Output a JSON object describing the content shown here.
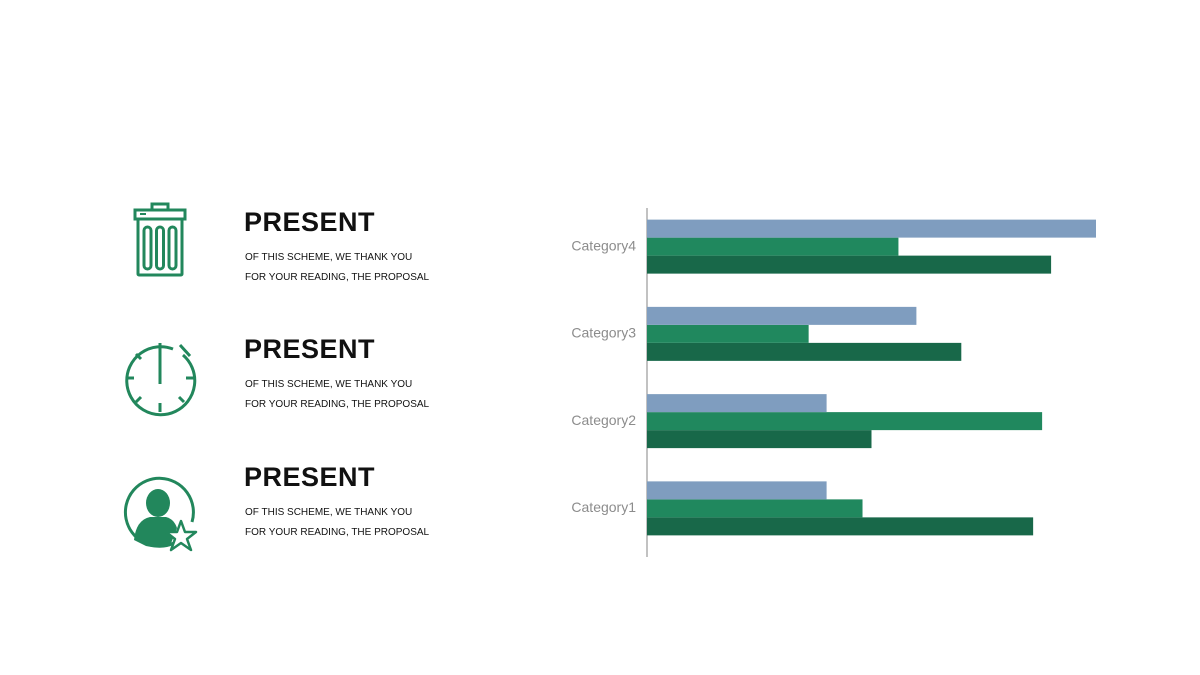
{
  "items": [
    {
      "title": "PRESENT",
      "line1": "OF THIS SCHEME, WE THANK YOU",
      "line2": "FOR YOUR READING, THE PROPOSAL"
    },
    {
      "title": "PRESENT",
      "line1": "OF THIS SCHEME, WE THANK YOU",
      "line2": "FOR YOUR READING, THE PROPOSAL"
    },
    {
      "title": "PRESENT",
      "line1": "OF THIS SCHEME, WE THANK YOU",
      "line2": "FOR YOUR READING, THE PROPOSAL"
    }
  ],
  "chart_data": {
    "type": "bar",
    "orientation": "horizontal",
    "categories": [
      "Category1",
      "Category2",
      "Category3",
      "Category4"
    ],
    "series": [
      {
        "color": "#186849",
        "values": [
          4.3,
          2.5,
          3.5,
          4.5
        ]
      },
      {
        "color": "#20885e",
        "values": [
          2.4,
          4.4,
          1.8,
          2.8
        ]
      },
      {
        "color": "#7f9dbf",
        "values": [
          2,
          2,
          3,
          5
        ]
      }
    ],
    "xlim": [
      0,
      5
    ]
  }
}
